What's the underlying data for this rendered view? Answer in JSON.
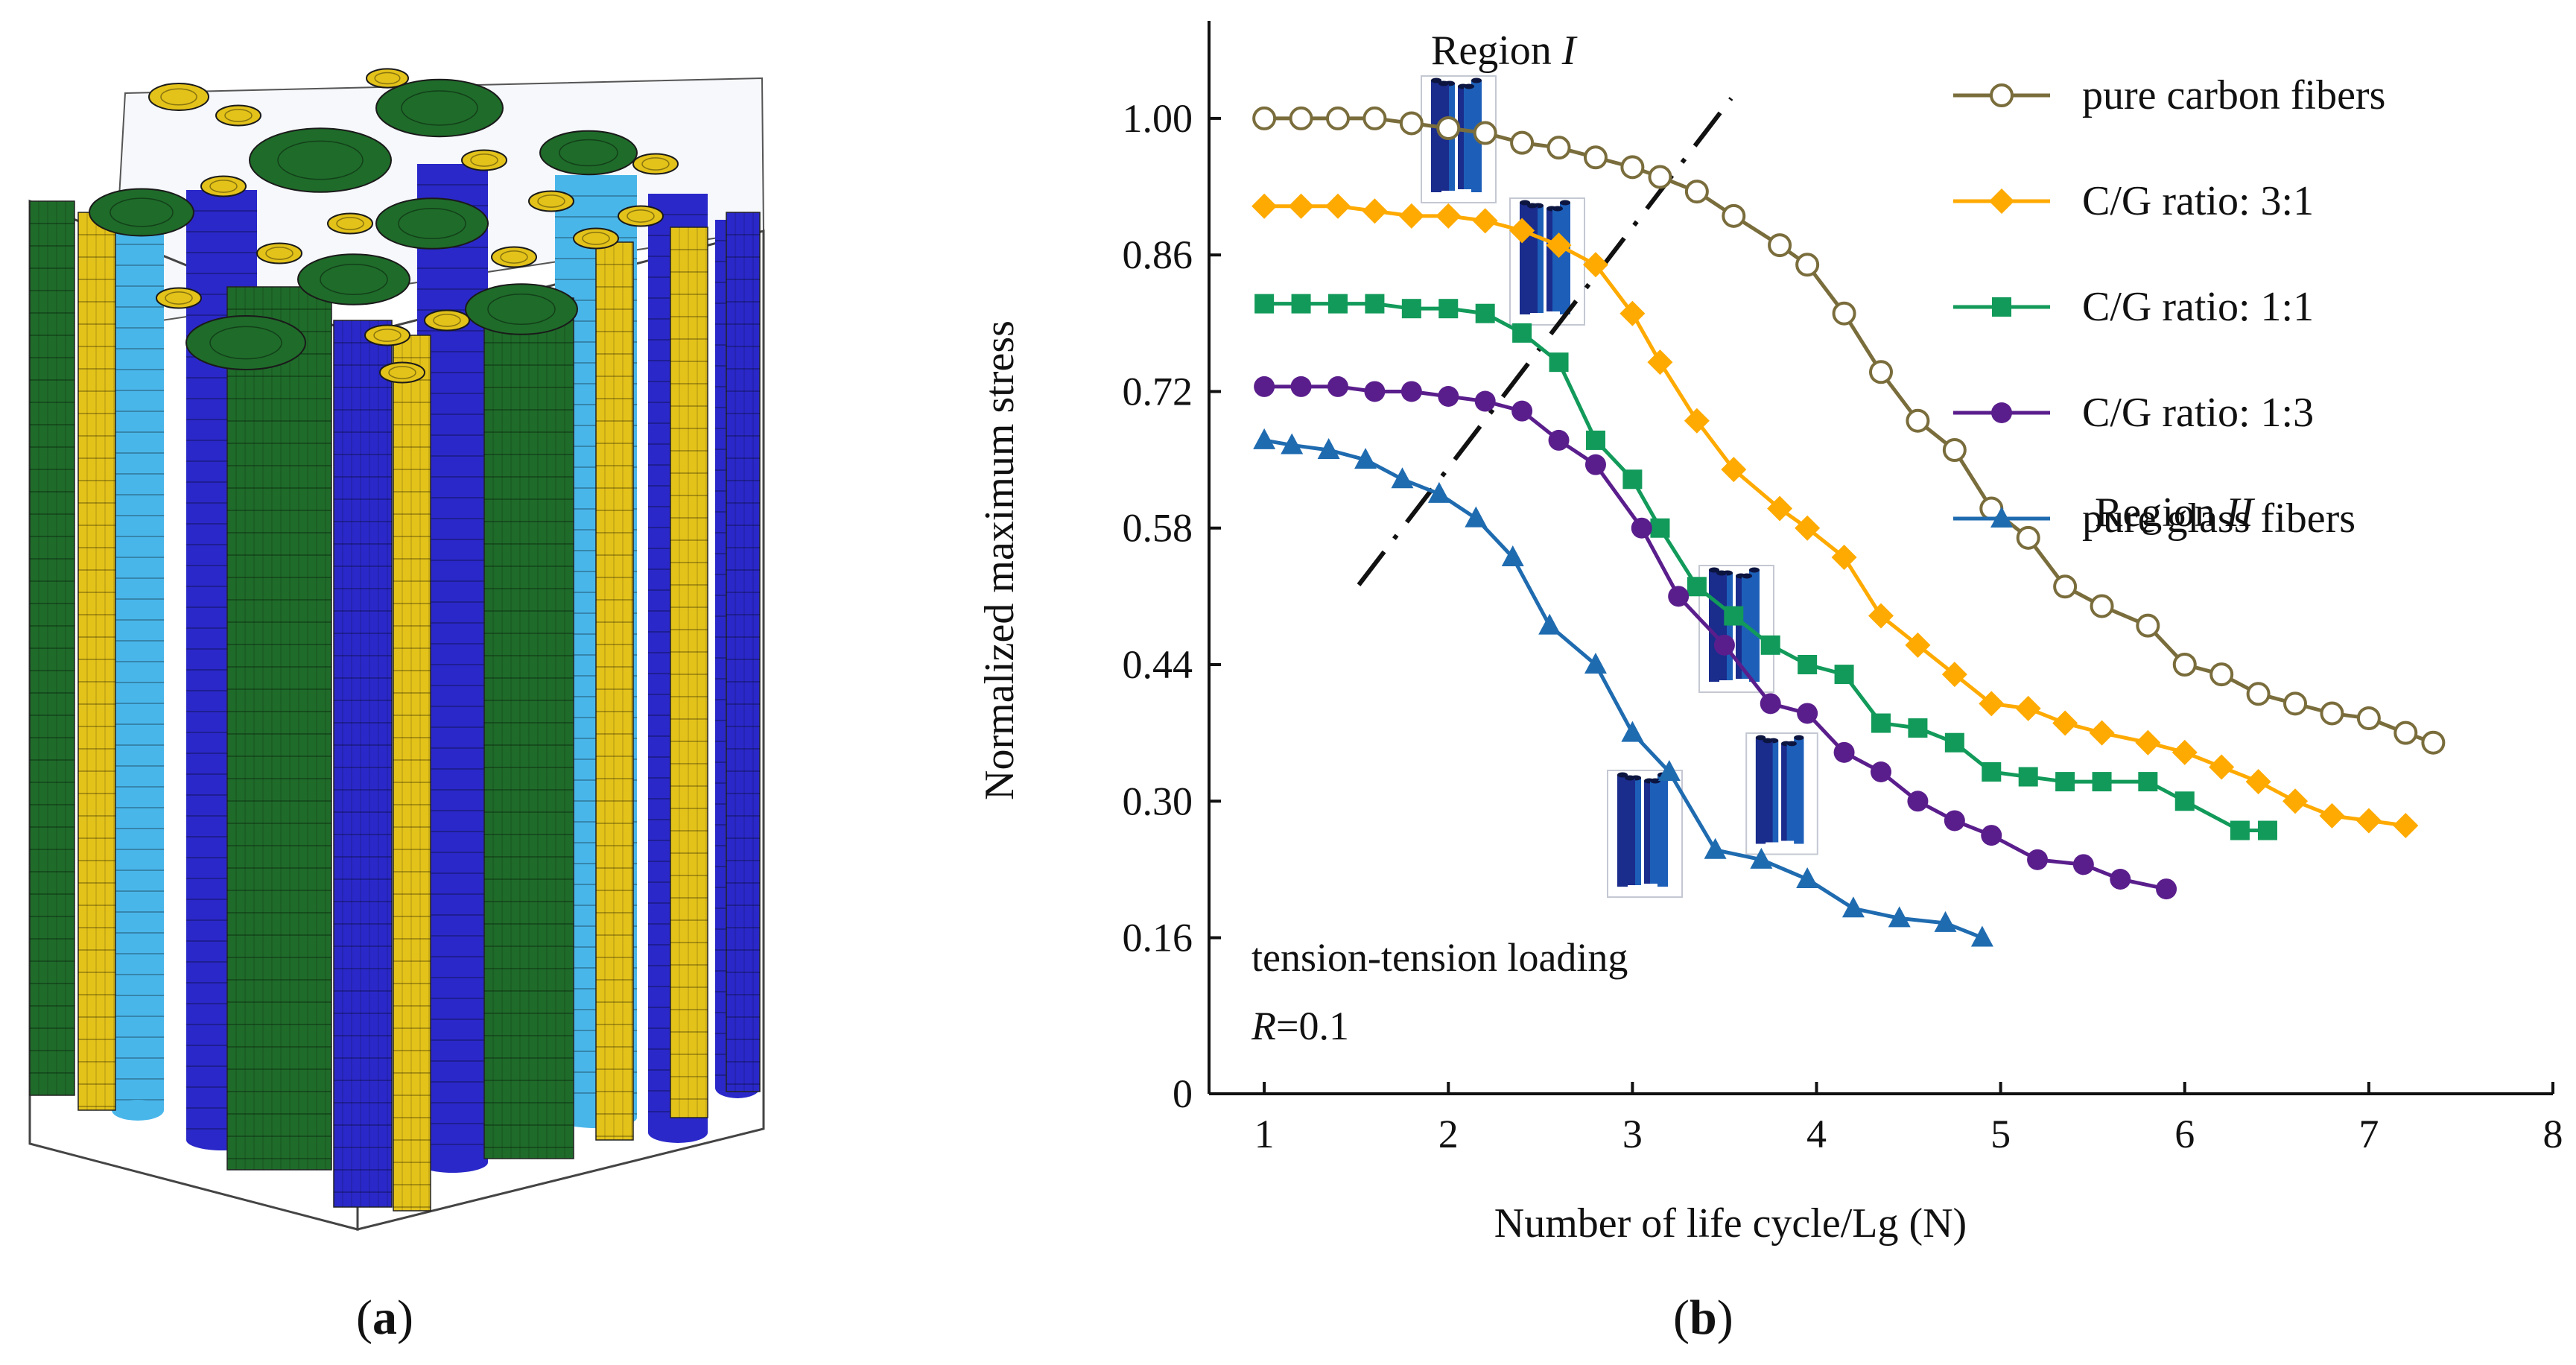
{
  "panel_a": {
    "caption_open": "(",
    "caption_letter": "a",
    "caption_close": ")"
  },
  "panel_b": {
    "caption_open": "(",
    "caption_letter": "b",
    "caption_close": ")"
  },
  "colors": {
    "carbon": "#7a6d3c",
    "cg31": "#ffaa00",
    "cg11": "#129a5a",
    "cg13": "#5a1e8c",
    "glass": "#1f6bb0",
    "model_green": "#1f6b2a",
    "model_yellow": "#e3c21a",
    "model_blue": "#2a28c8",
    "model_cyan": "#49b6ea"
  },
  "chart_data": {
    "type": "line",
    "xlabel": "Number of life cycle/Lg (N)",
    "ylabel": "Normalized maximum stress",
    "xlim": [
      0.7,
      8
    ],
    "ylim": [
      0,
      1.1
    ],
    "x_ticks": [
      "1",
      "2",
      "3",
      "4",
      "5",
      "6",
      "7",
      "8"
    ],
    "y_ticks": [
      "0",
      "0.16",
      "0.30",
      "0.44",
      "0.58",
      "0.72",
      "0.86",
      "1.00"
    ],
    "legend_position": "top-right",
    "annotations": {
      "region1_prefix": "Region ",
      "region1_roman": "I",
      "region2_prefix": "Region ",
      "region2_roman": "II",
      "loading": "tension-tension loading",
      "r_symbol": "R",
      "r_value": "=0.1"
    },
    "series": [
      {
        "name": "pure carbon fibers",
        "marker": "open-circle",
        "color_key": "carbon",
        "x": [
          1.0,
          1.2,
          1.4,
          1.6,
          1.8,
          2.0,
          2.2,
          2.4,
          2.6,
          2.8,
          3.0,
          3.15,
          3.35,
          3.55,
          3.8,
          3.95,
          4.15,
          4.35,
          4.55,
          4.75,
          4.95,
          5.15,
          5.35,
          5.55,
          5.8,
          6.0,
          6.2,
          6.4,
          6.6,
          6.8,
          7.0,
          7.2,
          7.35
        ],
        "y": [
          1.0,
          1.0,
          1.0,
          1.0,
          0.995,
          0.99,
          0.985,
          0.975,
          0.97,
          0.96,
          0.95,
          0.94,
          0.925,
          0.9,
          0.87,
          0.85,
          0.8,
          0.74,
          0.69,
          0.66,
          0.6,
          0.57,
          0.52,
          0.5,
          0.48,
          0.44,
          0.43,
          0.41,
          0.4,
          0.39,
          0.385,
          0.37,
          0.36
        ]
      },
      {
        "name": "C/G ratio: 3:1",
        "marker": "diamond",
        "color_key": "cg31",
        "x": [
          1.0,
          1.2,
          1.4,
          1.6,
          1.8,
          2.0,
          2.2,
          2.4,
          2.6,
          2.8,
          3.0,
          3.15,
          3.35,
          3.55,
          3.8,
          3.95,
          4.15,
          4.35,
          4.55,
          4.75,
          4.95,
          5.15,
          5.35,
          5.55,
          5.8,
          6.0,
          6.2,
          6.4,
          6.6,
          6.8,
          7.0,
          7.2
        ],
        "y": [
          0.91,
          0.91,
          0.91,
          0.905,
          0.9,
          0.9,
          0.895,
          0.885,
          0.87,
          0.85,
          0.8,
          0.75,
          0.69,
          0.64,
          0.6,
          0.58,
          0.55,
          0.49,
          0.46,
          0.43,
          0.4,
          0.395,
          0.38,
          0.37,
          0.36,
          0.35,
          0.335,
          0.32,
          0.3,
          0.285,
          0.28,
          0.275
        ]
      },
      {
        "name": "C/G ratio: 1:1",
        "marker": "square",
        "color_key": "cg11",
        "x": [
          1.0,
          1.2,
          1.4,
          1.6,
          1.8,
          2.0,
          2.2,
          2.4,
          2.6,
          2.8,
          3.0,
          3.15,
          3.35,
          3.55,
          3.75,
          3.95,
          4.15,
          4.35,
          4.55,
          4.75,
          4.95,
          5.15,
          5.35,
          5.55,
          5.8,
          6.0,
          6.3,
          6.45
        ],
        "y": [
          0.81,
          0.81,
          0.81,
          0.81,
          0.805,
          0.805,
          0.8,
          0.78,
          0.75,
          0.67,
          0.63,
          0.58,
          0.52,
          0.49,
          0.46,
          0.44,
          0.43,
          0.38,
          0.375,
          0.36,
          0.33,
          0.325,
          0.32,
          0.32,
          0.32,
          0.3,
          0.27,
          0.27
        ]
      },
      {
        "name": "C/G ratio: 1:3",
        "marker": "circle",
        "color_key": "cg13",
        "x": [
          1.0,
          1.2,
          1.4,
          1.6,
          1.8,
          2.0,
          2.2,
          2.4,
          2.6,
          2.8,
          3.05,
          3.25,
          3.5,
          3.75,
          3.95,
          4.15,
          4.35,
          4.55,
          4.75,
          4.95,
          5.2,
          5.45,
          5.65,
          5.9
        ],
        "y": [
          0.725,
          0.725,
          0.725,
          0.72,
          0.72,
          0.715,
          0.71,
          0.7,
          0.67,
          0.645,
          0.58,
          0.51,
          0.46,
          0.4,
          0.39,
          0.35,
          0.33,
          0.3,
          0.28,
          0.265,
          0.24,
          0.235,
          0.22,
          0.21
        ]
      },
      {
        "name": "pure glass fibers",
        "marker": "triangle",
        "color_key": "glass",
        "x": [
          1.0,
          1.15,
          1.35,
          1.55,
          1.75,
          1.95,
          2.15,
          2.35,
          2.55,
          2.8,
          3.0,
          3.2,
          3.45,
          3.7,
          3.95,
          4.2,
          4.45,
          4.7,
          4.9
        ],
        "y": [
          0.67,
          0.665,
          0.66,
          0.65,
          0.63,
          0.615,
          0.59,
          0.55,
          0.48,
          0.44,
          0.37,
          0.33,
          0.25,
          0.24,
          0.22,
          0.19,
          0.18,
          0.175,
          0.16
        ]
      }
    ]
  }
}
